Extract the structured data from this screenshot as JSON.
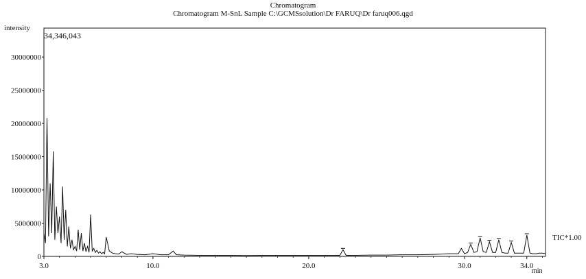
{
  "title": "Chromatogram",
  "subtitle": "Chromatogram M-SnL Sample C:\\GCMSsolution\\Dr FARUQ\\Dr faruq006.qgd",
  "chart_data": {
    "type": "line",
    "ylabel": "intensity",
    "xlabel": "min",
    "max_intensity_label": "34,346,043",
    "trace_label": "TIC*1.00",
    "xlim": [
      3.0,
      35.2
    ],
    "ylim": [
      0,
      34346043
    ],
    "x_ticks": [
      {
        "value": 3.0,
        "label": "3.0"
      },
      {
        "value": 10.0,
        "label": "10.0"
      },
      {
        "value": 20.0,
        "label": "20.0"
      },
      {
        "value": 30.0,
        "label": "30.0"
      },
      {
        "value": 34.0,
        "label": "34.0"
      }
    ],
    "y_ticks": [
      {
        "value": 30000000,
        "label": "30000000"
      },
      {
        "value": 25000000,
        "label": "25000000"
      },
      {
        "value": 20000000,
        "label": "20000000"
      },
      {
        "value": 15000000,
        "label": "15000000"
      },
      {
        "value": 10000000,
        "label": "10000000"
      },
      {
        "value": 5000000,
        "label": "5000000"
      },
      {
        "value": 0,
        "label": "0"
      }
    ],
    "series": [
      {
        "color": "#111111",
        "x": [
          3.0,
          3.1,
          3.2,
          3.3,
          3.4,
          3.5,
          3.6,
          3.7,
          3.8,
          3.9,
          4.0,
          4.1,
          4.2,
          4.3,
          4.4,
          4.5,
          4.6,
          4.7,
          4.8,
          4.9,
          5.0,
          5.1,
          5.2,
          5.3,
          5.4,
          5.5,
          5.6,
          5.7,
          5.8,
          5.9,
          6.0,
          6.1,
          6.2,
          6.3,
          6.4,
          6.5,
          6.6,
          6.7,
          6.8,
          6.9,
          7.0,
          7.2,
          7.4,
          7.6,
          7.8,
          8.0,
          8.3,
          8.6,
          9.0,
          9.5,
          10.0,
          10.5,
          11.0,
          11.3,
          11.5,
          12.0,
          13.0,
          14.0,
          15.0,
          16.0,
          17.0,
          18.0,
          19.0,
          20.0,
          21.0,
          22.0,
          22.2,
          22.4,
          23.0,
          24.0,
          25.0,
          26.0,
          27.0,
          28.0,
          29.0,
          29.6,
          29.8,
          30.0,
          30.2,
          30.4,
          30.6,
          30.8,
          31.0,
          31.2,
          31.4,
          31.6,
          31.8,
          32.0,
          32.2,
          32.4,
          32.6,
          32.8,
          33.0,
          33.2,
          33.4,
          33.6,
          33.8,
          34.0,
          34.2,
          34.4,
          34.6,
          34.8,
          35.0,
          35.2
        ],
        "y": [
          3500000,
          2000000,
          20800000,
          3000000,
          11000000,
          3500000,
          15800000,
          2500000,
          7500000,
          3500000,
          6000000,
          2000000,
          10500000,
          2500000,
          7000000,
          1500000,
          4500000,
          1200000,
          2500000,
          1000000,
          1500000,
          800000,
          4000000,
          1000000,
          3500000,
          800000,
          2000000,
          700000,
          1500000,
          600000,
          6300000,
          800000,
          1200000,
          600000,
          900000,
          500000,
          700000,
          400000,
          600000,
          400000,
          2900000,
          800000,
          500000,
          400000,
          350000,
          700000,
          300000,
          400000,
          300000,
          250000,
          400000,
          250000,
          250000,
          800000,
          250000,
          200000,
          150000,
          150000,
          150000,
          120000,
          150000,
          150000,
          150000,
          150000,
          150000,
          150000,
          1000000,
          150000,
          150000,
          200000,
          200000,
          250000,
          250000,
          300000,
          400000,
          400000,
          1200000,
          400000,
          600000,
          1800000,
          600000,
          700000,
          2800000,
          700000,
          600000,
          2200000,
          600000,
          600000,
          2500000,
          600000,
          500000,
          500000,
          2100000,
          500000,
          500000,
          500000,
          500000,
          3200000,
          500000,
          400000,
          400000,
          500000,
          500000,
          400000
        ]
      }
    ],
    "peak_markers": [
      {
        "x": 22.2,
        "y": 1000000
      },
      {
        "x": 30.4,
        "y": 1800000
      },
      {
        "x": 31.0,
        "y": 2800000
      },
      {
        "x": 31.6,
        "y": 2200000
      },
      {
        "x": 32.2,
        "y": 2500000
      },
      {
        "x": 33.0,
        "y": 2100000
      },
      {
        "x": 34.0,
        "y": 3200000
      }
    ]
  }
}
